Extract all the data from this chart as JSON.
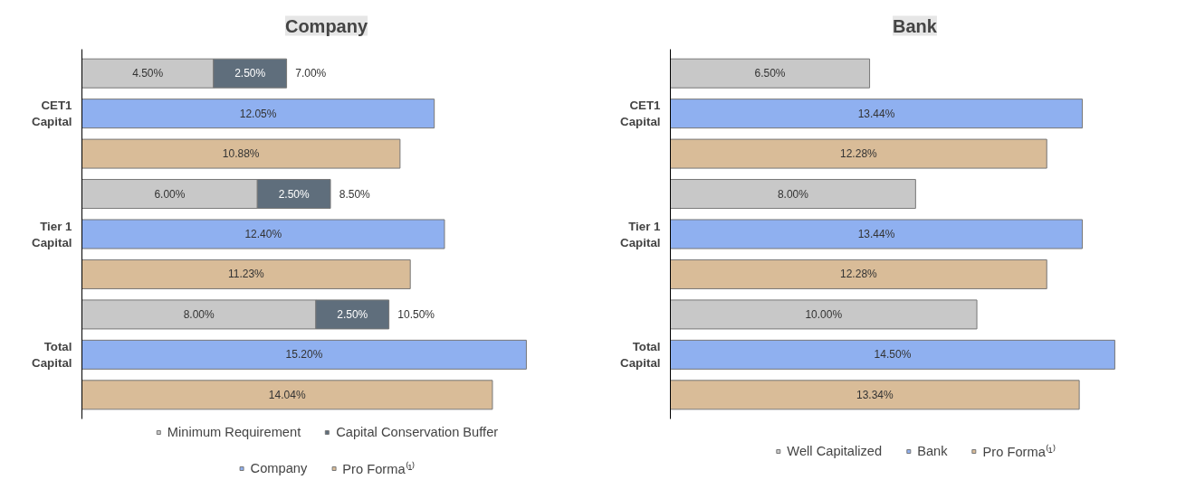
{
  "chart_data": [
    {
      "type": "bar",
      "title": "Company",
      "orientation": "horizontal",
      "stacked": true,
      "categories": [
        null,
        "CET1 Capital",
        null,
        null,
        "Tier 1 Capital",
        null,
        null,
        "Total Capital",
        null
      ],
      "tick_labels": "y",
      "legend": "bottom",
      "grid": false,
      "series": [
        {
          "name": "Minimum Requirement",
          "color": "#c8c8c8",
          "values": [
            4.5,
            null,
            null,
            6.0,
            null,
            null,
            8.0,
            null,
            null
          ],
          "value_labels": [
            "4.50%",
            null,
            null,
            "6.00%",
            null,
            null,
            "8.00%",
            null,
            null
          ]
        },
        {
          "name": "Capital Conservation Buffer",
          "color": "#5f6e7c",
          "values": [
            2.5,
            null,
            null,
            2.5,
            null,
            null,
            2.5,
            null,
            null
          ],
          "value_labels": [
            "2.50%",
            null,
            null,
            "2.50%",
            null,
            null,
            "2.50%",
            null,
            null
          ]
        },
        {
          "name": "Company",
          "color": "#8fb0f0",
          "values": [
            null,
            12.05,
            null,
            null,
            12.4,
            null,
            null,
            15.2,
            null
          ],
          "value_labels": [
            null,
            "12.05%",
            null,
            null,
            "12.40%",
            null,
            null,
            "15.20%",
            null
          ]
        },
        {
          "name": "Pro Forma⁽¹⁾",
          "color": "#d9bc98",
          "values": [
            null,
            null,
            10.88,
            null,
            null,
            11.23,
            null,
            null,
            14.04
          ],
          "value_labels": [
            null,
            null,
            "10.88%",
            null,
            null,
            "11.23%",
            null,
            null,
            "14.04%"
          ]
        }
      ],
      "totals": [
        "7.00%",
        null,
        null,
        "8.50%",
        null,
        null,
        "10.50%",
        null,
        null
      ]
    },
    {
      "type": "bar",
      "title": "Bank",
      "orientation": "horizontal",
      "categories": [
        null,
        "CET1 Capital",
        null,
        null,
        "Tier 1 Capital",
        null,
        null,
        "Total Capital",
        null
      ],
      "tick_labels": "y",
      "legend": "bottom",
      "grid": false,
      "series": [
        {
          "name": "Well Capitalized",
          "color": "#c8c8c8",
          "values": [
            6.5,
            null,
            null,
            8.0,
            null,
            null,
            10.0,
            null,
            null
          ],
          "value_labels": [
            "6.50%",
            null,
            null,
            "8.00%",
            null,
            null,
            "10.00%",
            null,
            null
          ]
        },
        {
          "name": "Bank",
          "color": "#8fb0f0",
          "values": [
            null,
            13.44,
            null,
            null,
            13.44,
            null,
            null,
            14.5,
            null
          ],
          "value_labels": [
            null,
            "13.44%",
            null,
            null,
            "13.44%",
            null,
            null,
            "14.50%",
            null
          ]
        },
        {
          "name": "Pro Forma⁽¹⁾",
          "color": "#d9bc98",
          "values": [
            null,
            null,
            12.28,
            null,
            null,
            12.28,
            null,
            null,
            13.34
          ],
          "value_labels": [
            null,
            null,
            "12.28%",
            null,
            null,
            "12.28%",
            null,
            null,
            "13.34%"
          ]
        }
      ]
    }
  ]
}
